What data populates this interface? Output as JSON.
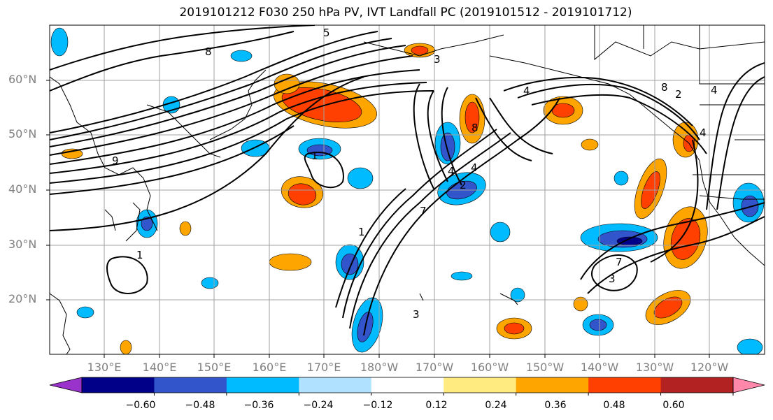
{
  "title": "2019101212 F030 250 hPa PV, IVT Landfall PC (2019101512 - 2019101712)",
  "map": {
    "lat_labels": [
      "60°N",
      "50°N",
      "40°N",
      "30°N",
      "20°N"
    ],
    "lon_labels": [
      "130°E",
      "140°E",
      "150°E",
      "160°E",
      "170°E",
      "180°W",
      "170°W",
      "160°W",
      "150°W",
      "140°W",
      "130°W",
      "120°W"
    ],
    "contour_labels": [
      "8",
      "5",
      "3",
      "1",
      "4",
      "1",
      "7",
      "2",
      "3",
      "8",
      "4",
      "4",
      "7",
      "3",
      "1",
      "8",
      "2",
      "4",
      "4",
      "9"
    ]
  },
  "colorbar": {
    "tick_labels": [
      "−0.60",
      "−0.48",
      "−0.36",
      "−0.24",
      "−0.12",
      "0.12",
      "0.24",
      "0.36",
      "0.48",
      "0.60"
    ],
    "colors": [
      "#9933cc",
      "#000088",
      "#3355cc",
      "#00bbff",
      "#b0e2ff",
      "#ffffff",
      "#ffeb80",
      "#ffa500",
      "#ff4000",
      "#b22222",
      "#ff88aa"
    ]
  },
  "colors": {
    "neg_strong": "#3355cc",
    "neg_mid": "#00bbff",
    "neg_weak": "#b0e2ff",
    "pos_weak": "#ffeb80",
    "pos_mid": "#ffa500",
    "pos_strong": "#ff4000",
    "pos_max": "#b22222",
    "neg_max": "#000088",
    "gridline": "#a0a0a0",
    "contour": "#000000"
  }
}
